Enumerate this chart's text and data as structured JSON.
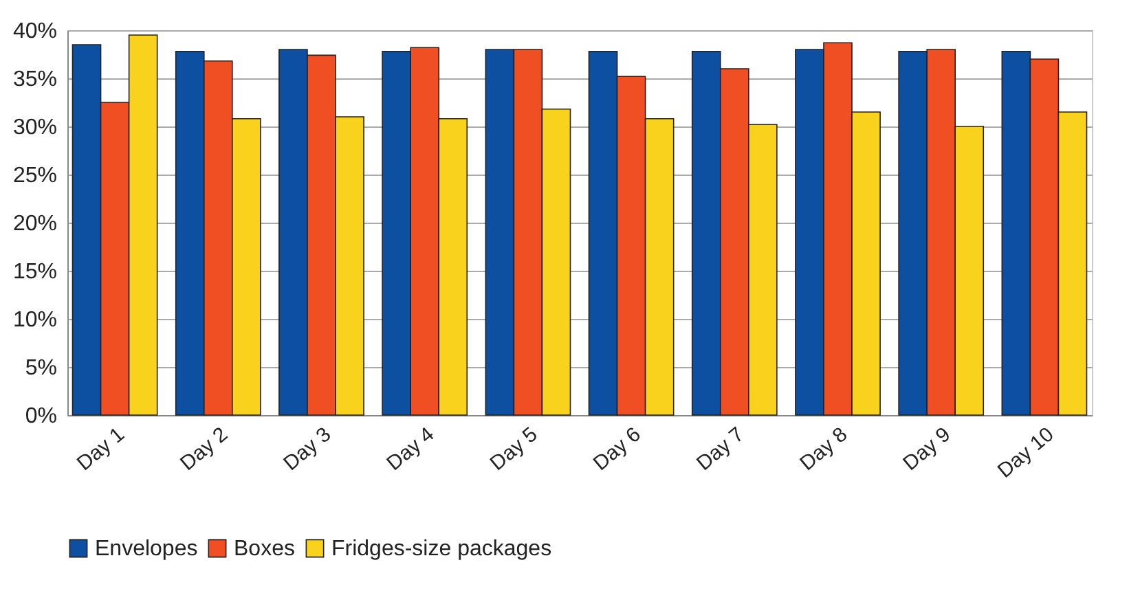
{
  "chart_data": {
    "type": "bar",
    "categories": [
      "Day 1",
      "Day 2",
      "Day 3",
      "Day 4",
      "Day 5",
      "Day 6",
      "Day 7",
      "Day 8",
      "Day 9",
      "Day 10"
    ],
    "series": [
      {
        "name": "Envelopes",
        "color": "#0d4fa0",
        "values": [
          38.5,
          37.8,
          38,
          37.8,
          38,
          37.8,
          37.8,
          38,
          37.8,
          37.8
        ]
      },
      {
        "name": "Boxes",
        "color": "#f04e23",
        "values": [
          32.5,
          36.8,
          37.4,
          38.2,
          38,
          35.2,
          36,
          38.7,
          38,
          37
        ]
      },
      {
        "name": "Fridges-size packages",
        "color": "#f8d21c",
        "values": [
          39.5,
          30.8,
          31,
          30.8,
          31.8,
          30.8,
          30.2,
          31.5,
          30,
          31.5
        ]
      }
    ],
    "ylim": [
      0,
      40
    ],
    "yticks": [
      {
        "value": 0,
        "label": "0%"
      },
      {
        "value": 5,
        "label": "5%"
      },
      {
        "value": 10,
        "label": "10%"
      },
      {
        "value": 15,
        "label": "15%"
      },
      {
        "value": 20,
        "label": "20%"
      },
      {
        "value": 25,
        "label": "25%"
      },
      {
        "value": 30,
        "label": "30%"
      },
      {
        "value": 35,
        "label": "35%"
      },
      {
        "value": 40,
        "label": "40%"
      }
    ],
    "grid": "y",
    "legend": "bottom"
  }
}
